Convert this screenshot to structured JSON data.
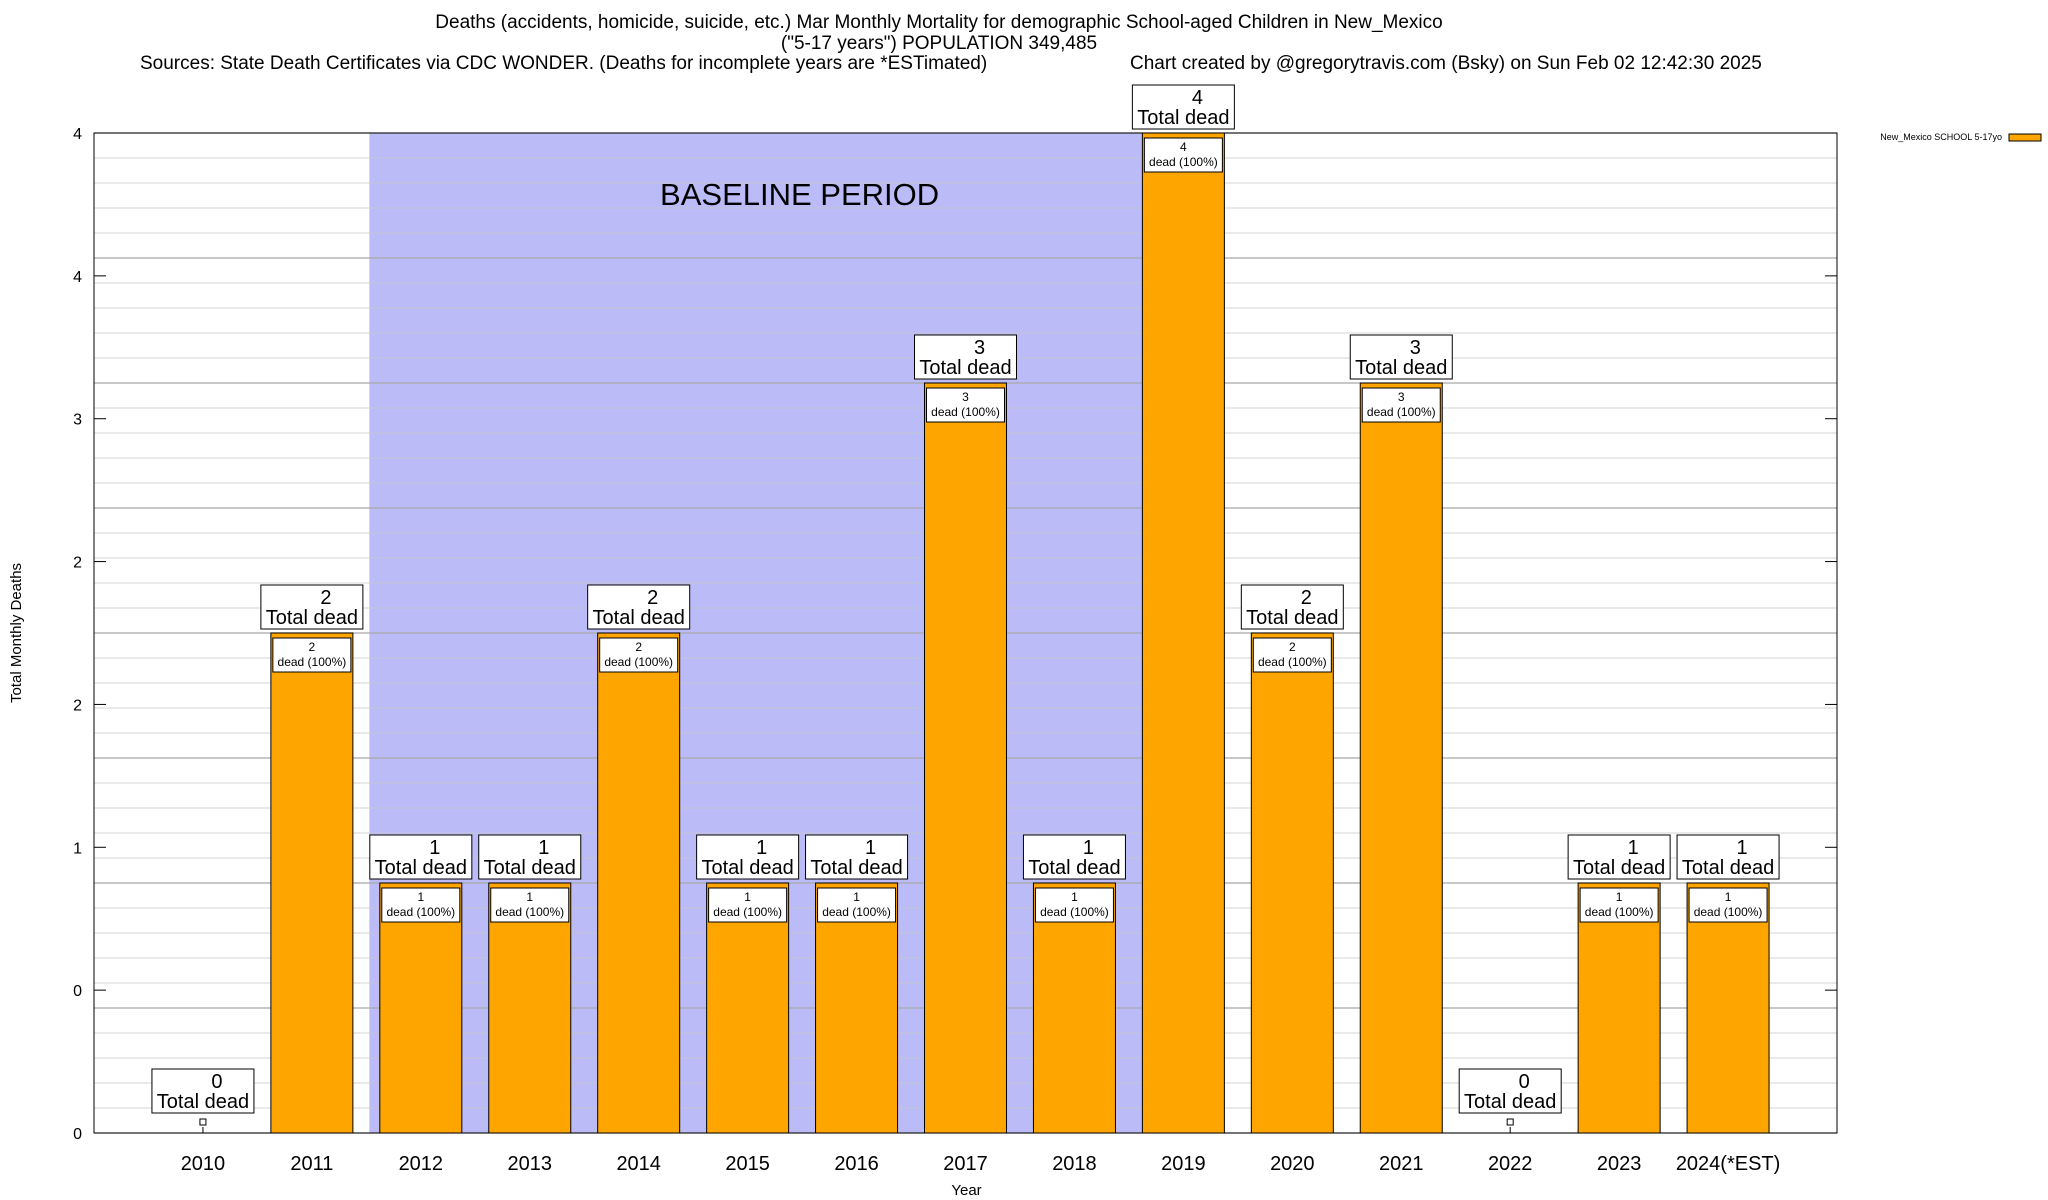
{
  "chart_data": {
    "type": "bar",
    "title": "Deaths (accidents, homicide, suicide, etc.) Mar Monthly Mortality for demographic School-aged Children in New_Mexico",
    "subtitle": "(\"5-17 years\") POPULATION 349,485",
    "sources": "Sources: State Death Certificates via CDC WONDER. (Deaths for incomplete years are *ESTimated)",
    "credit": "Chart created by @gregorytravis.com (Bsky) on Sun Feb 02 12:42:30 2025",
    "xlabel": "Year",
    "ylabel": "Total Monthly Deaths",
    "ylim": [
      0,
      4
    ],
    "y_tick_labels": [
      "0",
      "0",
      "1",
      "2",
      "2",
      "3",
      "4",
      "4"
    ],
    "categories": [
      "2010",
      "2011",
      "2012",
      "2013",
      "2014",
      "2015",
      "2016",
      "2017",
      "2018",
      "2019",
      "2020",
      "2021",
      "2022",
      "2023",
      "2024(*EST)"
    ],
    "series": [
      {
        "name": "New_Mexico SCHOOL 5-17yo",
        "color": "#FFA500",
        "values": [
          0,
          2,
          1,
          1,
          2,
          1,
          1,
          3,
          1,
          4,
          2,
          3,
          0,
          1,
          1
        ]
      }
    ],
    "total_labels": [
      "0",
      "2",
      "1",
      "1",
      "2",
      "1",
      "1",
      "3",
      "1",
      "4",
      "2",
      "3",
      "0",
      "1",
      "1"
    ],
    "total_label_suffix": "Total dead",
    "segment_labels": [
      "",
      "2",
      "1",
      "1",
      "2",
      "1",
      "1",
      "3",
      "1",
      "4",
      "2",
      "3",
      "",
      "1",
      "1"
    ],
    "segment_label_suffix": "dead (100%)",
    "baseline": {
      "label": "BASELINE PERIOD",
      "start": "2012",
      "end": "2019",
      "color": "#BBBBF8"
    },
    "legend_position": "top-right",
    "grid": true
  }
}
